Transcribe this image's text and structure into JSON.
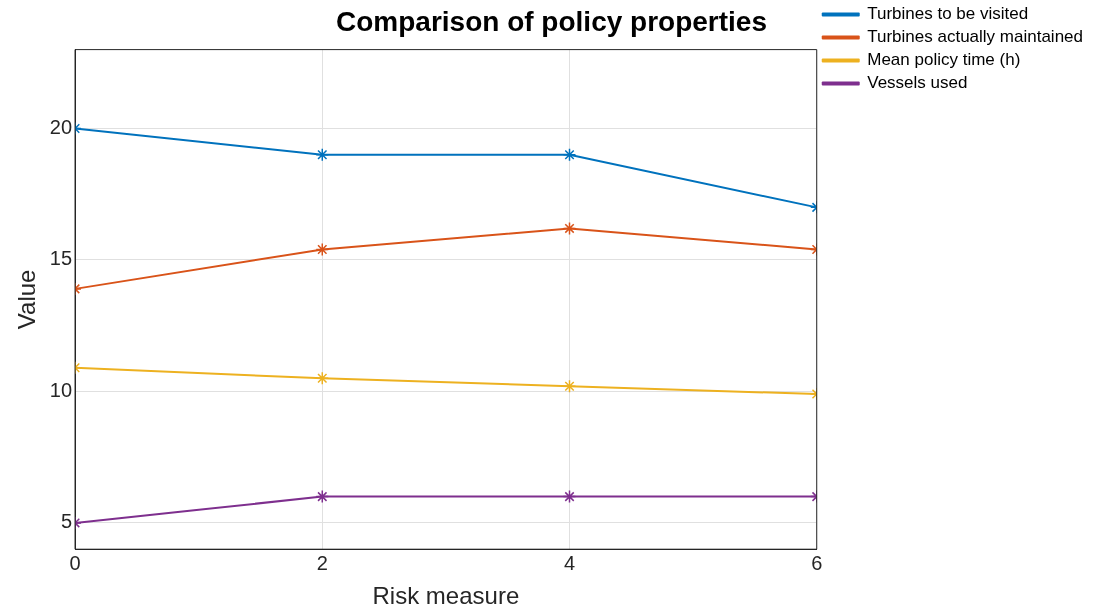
{
  "chart_data": {
    "type": "line",
    "title": "Comparison of policy properties",
    "xlabel": "Risk measure",
    "ylabel": "Value",
    "x": [
      0,
      2,
      4,
      6
    ],
    "series": [
      {
        "name": "Turbines to be visited",
        "color": "#0072bd",
        "values": [
          20,
          19,
          19,
          17
        ]
      },
      {
        "name": "Turbines actually maintained",
        "color": "#d95319",
        "values": [
          13.9,
          15.4,
          16.2,
          15.4
        ]
      },
      {
        "name": "Mean policy time (h)",
        "color": "#edb120",
        "values": [
          10.9,
          10.5,
          10.2,
          9.9
        ]
      },
      {
        "name": "Vessels used",
        "color": "#7e2f8e",
        "values": [
          5,
          6,
          6,
          6
        ]
      }
    ],
    "xlim": [
      0,
      6
    ],
    "xticks": [
      0,
      2,
      4,
      6
    ],
    "ylim": [
      4,
      23
    ],
    "yticks": [
      5,
      10,
      15,
      20
    ],
    "grid": true,
    "legend": "top right",
    "marker": "cross",
    "line_style": "solid"
  }
}
